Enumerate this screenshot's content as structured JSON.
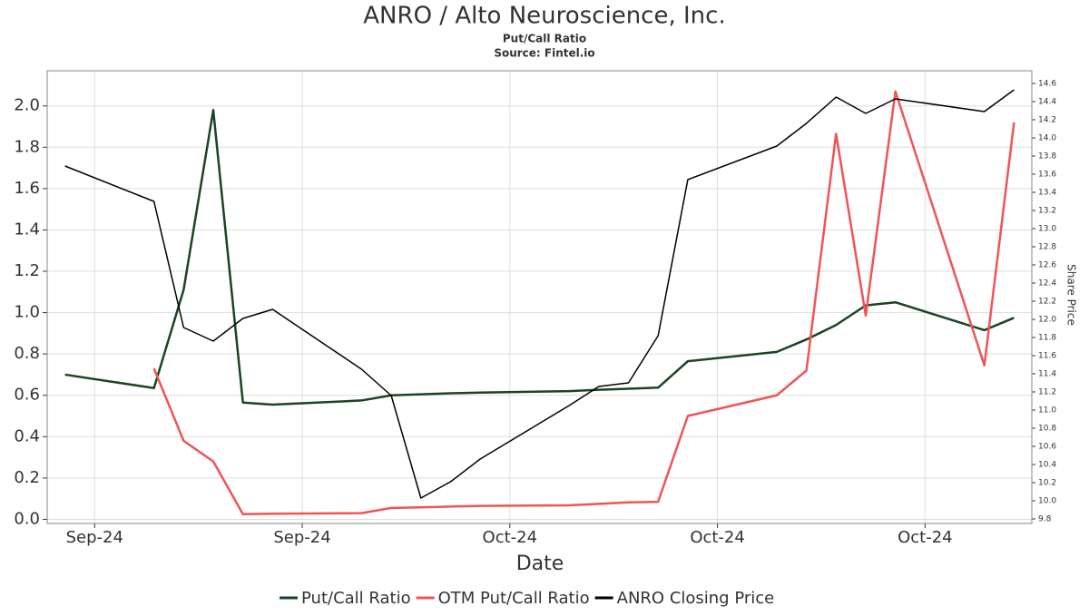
{
  "chart_data": {
    "type": "line",
    "title": "ANRO / Alto Neuroscience, Inc.",
    "subtitle": "Put/Call Ratio",
    "source": "Source: Fintel.io",
    "x_label": "Date",
    "y2_label": "Share Price",
    "x": [
      0,
      3,
      4,
      5,
      6,
      7,
      10,
      11,
      12,
      13,
      14,
      17,
      18,
      19,
      20,
      21,
      24,
      25,
      26,
      27,
      28,
      31,
      32
    ],
    "xlim": [
      -0.6,
      32.6
    ],
    "xticks": [
      {
        "value": 1,
        "label": "Sep-24"
      },
      {
        "value": 8,
        "label": "Sep-24"
      },
      {
        "value": 15,
        "label": "Oct-24"
      },
      {
        "value": 22,
        "label": "Oct-24"
      },
      {
        "value": 29,
        "label": "Oct-24"
      }
    ],
    "ylim": [
      -0.02,
      2.17
    ],
    "yticks": [
      {
        "value": 0,
        "label": "0.0"
      },
      0.2,
      0.4,
      0.6,
      0.8,
      {
        "value": 1,
        "label": "1.0"
      },
      1.2,
      1.4,
      1.6,
      1.8,
      {
        "value": 2,
        "label": "2.0"
      }
    ],
    "y2lim": [
      9.75,
      14.74
    ],
    "y2ticks": [
      9.8,
      {
        "value": 10,
        "label": "10.0"
      },
      10.2,
      10.4,
      10.6,
      10.8,
      {
        "value": 11,
        "label": "11.0"
      },
      11.2,
      11.4,
      11.6,
      11.8,
      {
        "value": 12,
        "label": "12.0"
      },
      12.2,
      12.4,
      12.6,
      12.8,
      {
        "value": 13,
        "label": "13.0"
      },
      13.2,
      13.4,
      13.6,
      13.8,
      {
        "value": 14,
        "label": "14.0"
      },
      14.2,
      14.4,
      14.6
    ],
    "grid": true,
    "legend": "bottom",
    "series": [
      {
        "name": "Put/Call Ratio",
        "color": "#1a4423",
        "width": 2.5,
        "values": [
          0.7,
          0.635,
          1.11,
          1.98,
          0.565,
          0.555,
          0.575,
          0.6,
          0.605,
          0.61,
          0.613,
          0.62,
          0.627,
          0.632,
          0.637,
          0.765,
          0.81,
          0.87,
          0.94,
          1.035,
          1.05,
          0.915,
          0.975
        ]
      },
      {
        "name": "OTM Put/Call Ratio",
        "color": "#f05454",
        "width": 2.5,
        "values": [
          null,
          0.73,
          0.38,
          0.28,
          0.025,
          0.027,
          0.03,
          0.055,
          0.058,
          0.062,
          0.065,
          0.068,
          0.075,
          0.082,
          0.085,
          0.5,
          0.6,
          0.72,
          1.865,
          0.985,
          2.07,
          0.745,
          1.92
        ]
      },
      {
        "name": "ANRO Closing Price",
        "color": "#000000",
        "width": 1.5,
        "axis": "y2",
        "values": [
          13.69,
          13.3,
          11.91,
          11.76,
          12.01,
          12.11,
          11.45,
          11.16,
          10.03,
          10.21,
          10.46,
          11.05,
          11.26,
          11.3,
          11.82,
          13.54,
          13.91,
          14.16,
          14.45,
          14.27,
          14.43,
          14.29,
          14.53
        ]
      }
    ]
  }
}
